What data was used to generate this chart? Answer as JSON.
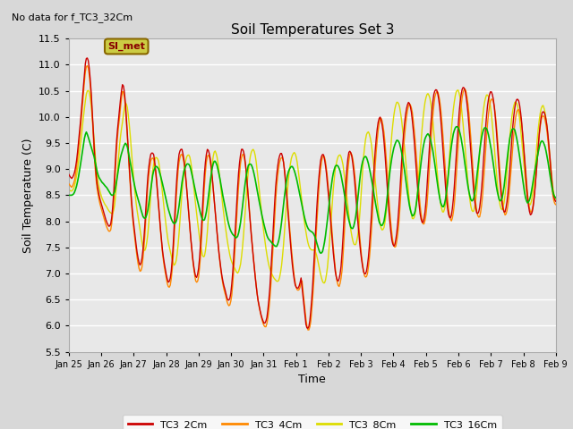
{
  "title": "Soil Temperatures Set 3",
  "subtitle": "No data for f_TC3_32Cm",
  "xlabel": "Time",
  "ylabel": "Soil Temperature (C)",
  "ylim": [
    5.5,
    11.5
  ],
  "yticks": [
    5.5,
    6.0,
    6.5,
    7.0,
    7.5,
    8.0,
    8.5,
    9.0,
    9.5,
    10.0,
    10.5,
    11.0,
    11.5
  ],
  "xtick_labels": [
    "Jan 25",
    "Jan 26",
    "Jan 27",
    "Jan 28",
    "Jan 29",
    "Jan 30",
    "Jan 31",
    "Feb 1",
    "Feb 2",
    "Feb 3",
    "Feb 4",
    "Feb 5",
    "Feb 6",
    "Feb 7",
    "Feb 8",
    "Feb 9"
  ],
  "legend_labels": [
    "TC3_2Cm",
    "TC3_4Cm",
    "TC3_8Cm",
    "TC3_16Cm"
  ],
  "line_colors": [
    "#cc0000",
    "#ff8800",
    "#dddd00",
    "#00bb00"
  ],
  "bg_color": "#d8d8d8",
  "plot_bg_color": "#e8e8e8",
  "grid_color": "#ffffff",
  "annotation_text": "SI_met",
  "annotation_bg": "#cccc44",
  "annotation_border": "#886600",
  "TC3_2Cm": [
    8.9,
    8.85,
    8.82,
    8.86,
    8.95,
    9.1,
    9.35,
    9.65,
    9.95,
    10.3,
    10.65,
    11.0,
    11.15,
    11.1,
    10.88,
    10.5,
    10.0,
    9.45,
    9.0,
    8.72,
    8.55,
    8.42,
    8.32,
    8.22,
    8.12,
    8.02,
    7.95,
    7.9,
    7.92,
    8.1,
    8.45,
    9.0,
    9.5,
    9.85,
    10.1,
    10.42,
    10.62,
    10.58,
    10.28,
    9.85,
    9.35,
    8.88,
    8.45,
    8.1,
    7.85,
    7.6,
    7.38,
    7.22,
    7.15,
    7.25,
    7.5,
    7.88,
    8.38,
    8.82,
    9.12,
    9.28,
    9.32,
    9.28,
    9.08,
    8.78,
    8.42,
    8.05,
    7.72,
    7.42,
    7.22,
    7.05,
    6.9,
    6.82,
    6.88,
    7.08,
    7.48,
    8.02,
    8.58,
    9.02,
    9.28,
    9.38,
    9.38,
    9.25,
    9.02,
    8.7,
    8.35,
    7.98,
    7.65,
    7.35,
    7.12,
    6.95,
    6.92,
    7.05,
    7.35,
    7.82,
    8.38,
    8.88,
    9.22,
    9.38,
    9.35,
    9.2,
    8.95,
    8.62,
    8.28,
    7.95,
    7.65,
    7.35,
    7.12,
    6.92,
    6.78,
    6.68,
    6.55,
    6.48,
    6.5,
    6.65,
    6.98,
    7.42,
    7.95,
    8.48,
    8.92,
    9.22,
    9.38,
    9.38,
    9.25,
    9.0,
    8.65,
    8.28,
    7.92,
    7.58,
    7.28,
    6.98,
    6.72,
    6.5,
    6.35,
    6.22,
    6.12,
    6.05,
    6.05,
    6.15,
    6.38,
    6.72,
    7.18,
    7.72,
    8.25,
    8.7,
    9.0,
    9.2,
    9.3,
    9.3,
    9.18,
    8.92,
    8.6,
    8.25,
    7.88,
    7.52,
    7.2,
    6.95,
    6.78,
    6.72,
    6.72,
    6.78,
    6.92,
    6.62,
    6.35,
    6.05,
    5.95,
    5.95,
    6.12,
    6.45,
    6.88,
    7.42,
    7.98,
    8.48,
    8.88,
    9.15,
    9.28,
    9.28,
    9.15,
    8.92,
    8.62,
    8.28,
    7.92,
    7.58,
    7.28,
    7.02,
    6.88,
    6.85,
    6.95,
    7.18,
    7.62,
    8.18,
    8.72,
    9.12,
    9.32,
    9.35,
    9.25,
    9.05,
    8.75,
    8.38,
    8.02,
    7.68,
    7.4,
    7.18,
    7.02,
    6.98,
    7.05,
    7.25,
    7.58,
    8.02,
    8.55,
    9.05,
    9.45,
    9.75,
    9.95,
    10.0,
    9.92,
    9.72,
    9.42,
    9.02,
    8.58,
    8.18,
    7.85,
    7.62,
    7.52,
    7.55,
    7.72,
    8.0,
    8.42,
    8.92,
    9.38,
    9.75,
    10.02,
    10.2,
    10.28,
    10.25,
    10.1,
    9.85,
    9.52,
    9.12,
    8.72,
    8.38,
    8.12,
    7.98,
    7.98,
    8.12,
    8.42,
    8.88,
    9.38,
    9.82,
    10.18,
    10.42,
    10.52,
    10.52,
    10.42,
    10.2,
    9.88,
    9.48,
    9.05,
    8.65,
    8.32,
    8.12,
    8.05,
    8.12,
    8.35,
    8.72,
    9.18,
    9.65,
    10.05,
    10.35,
    10.52,
    10.58,
    10.52,
    10.35,
    10.08,
    9.72,
    9.28,
    8.88,
    8.52,
    8.28,
    8.15,
    8.15,
    8.28,
    8.55,
    8.95,
    9.42,
    9.85,
    10.18,
    10.38,
    10.48,
    10.48,
    10.35,
    10.12,
    9.78,
    9.38,
    8.95,
    8.58,
    8.32,
    8.18,
    8.18,
    8.32,
    8.58,
    8.95,
    9.38,
    9.78,
    10.08,
    10.28,
    10.35,
    10.32,
    10.18,
    9.92,
    9.58,
    9.18,
    8.78,
    8.45,
    8.22,
    8.12,
    8.15,
    8.32,
    8.6,
    8.98,
    9.38,
    9.72,
    9.98,
    10.1,
    10.1,
    10.02,
    9.85,
    9.58,
    9.25,
    8.88,
    8.58,
    8.42,
    8.38
  ],
  "TC3_4Cm": [
    8.72,
    8.68,
    8.65,
    8.7,
    8.8,
    8.98,
    9.22,
    9.52,
    9.82,
    10.18,
    10.52,
    10.85,
    11.0,
    10.95,
    10.75,
    10.38,
    9.88,
    9.32,
    8.88,
    8.62,
    8.45,
    8.32,
    8.22,
    8.12,
    8.02,
    7.92,
    7.85,
    7.8,
    7.82,
    8.0,
    8.35,
    8.88,
    9.38,
    9.75,
    9.98,
    10.3,
    10.5,
    10.45,
    10.15,
    9.72,
    9.22,
    8.75,
    8.32,
    7.98,
    7.72,
    7.48,
    7.25,
    7.1,
    7.02,
    7.12,
    7.38,
    7.75,
    8.25,
    8.72,
    9.0,
    9.18,
    9.22,
    9.18,
    8.98,
    8.68,
    8.32,
    7.95,
    7.62,
    7.32,
    7.12,
    6.95,
    6.8,
    6.72,
    6.78,
    6.98,
    7.38,
    7.92,
    8.48,
    8.92,
    9.18,
    9.28,
    9.28,
    9.15,
    8.92,
    8.6,
    8.25,
    7.88,
    7.55,
    7.25,
    7.02,
    6.85,
    6.82,
    6.95,
    7.25,
    7.72,
    8.28,
    8.78,
    9.12,
    9.28,
    9.25,
    9.1,
    8.85,
    8.52,
    8.18,
    7.85,
    7.55,
    7.25,
    7.02,
    6.82,
    6.68,
    6.58,
    6.45,
    6.38,
    6.4,
    6.55,
    6.88,
    7.32,
    7.85,
    8.38,
    8.82,
    9.12,
    9.28,
    9.28,
    9.15,
    8.9,
    8.55,
    8.18,
    7.82,
    7.48,
    7.18,
    6.9,
    6.62,
    6.42,
    6.28,
    6.15,
    6.05,
    5.98,
    5.98,
    6.08,
    6.32,
    6.65,
    7.12,
    7.65,
    8.18,
    8.62,
    8.92,
    9.12,
    9.22,
    9.22,
    9.1,
    8.85,
    8.52,
    8.18,
    7.82,
    7.48,
    7.18,
    6.92,
    6.75,
    6.68,
    6.68,
    6.75,
    6.9,
    6.6,
    6.35,
    6.05,
    5.92,
    5.92,
    6.08,
    6.42,
    6.85,
    7.38,
    7.95,
    8.45,
    8.85,
    9.12,
    9.25,
    9.25,
    9.12,
    8.88,
    8.58,
    8.25,
    7.88,
    7.52,
    7.2,
    6.95,
    6.78,
    6.75,
    6.85,
    7.08,
    7.52,
    8.08,
    8.62,
    9.05,
    9.28,
    9.32,
    9.22,
    9.02,
    8.72,
    8.35,
    7.98,
    7.62,
    7.32,
    7.1,
    6.95,
    6.92,
    7.0,
    7.22,
    7.55,
    8.0,
    8.52,
    9.02,
    9.42,
    9.72,
    9.92,
    9.98,
    9.9,
    9.7,
    9.4,
    9.0,
    8.55,
    8.15,
    7.82,
    7.6,
    7.5,
    7.52,
    7.7,
    7.98,
    8.4,
    8.9,
    9.35,
    9.72,
    9.98,
    10.18,
    10.25,
    10.22,
    10.08,
    9.82,
    9.5,
    9.1,
    8.7,
    8.35,
    8.1,
    7.95,
    7.95,
    8.1,
    8.38,
    8.85,
    9.35,
    9.78,
    10.12,
    10.38,
    10.48,
    10.48,
    10.38,
    10.15,
    9.82,
    9.42,
    9.0,
    8.6,
    8.28,
    8.08,
    8.0,
    8.08,
    8.3,
    8.68,
    9.15,
    9.62,
    10.02,
    10.32,
    10.48,
    10.55,
    10.48,
    10.3,
    10.02,
    9.65,
    9.22,
    8.82,
    8.45,
    8.2,
    8.08,
    8.08,
    8.22,
    8.5,
    8.9,
    9.35,
    9.78,
    10.08,
    10.28,
    10.35,
    10.32,
    10.18,
    9.92,
    9.58,
    9.18,
    8.78,
    8.45,
    8.22,
    8.12,
    8.15,
    8.32,
    8.6,
    8.98,
    9.38,
    9.72,
    9.98,
    10.12,
    10.15,
    10.08,
    9.9,
    9.62,
    9.28,
    8.9,
    8.55,
    8.3,
    8.18,
    8.18,
    8.35,
    8.62,
    8.98,
    9.35,
    9.68,
    9.92,
    10.02,
    10.02,
    9.92,
    9.75,
    9.48,
    9.15,
    8.78,
    8.5,
    8.35,
    8.32
  ],
  "TC3_8Cm": [
    8.62,
    8.58,
    8.58,
    8.62,
    8.72,
    8.88,
    9.08,
    9.35,
    9.62,
    9.92,
    10.18,
    10.42,
    10.52,
    10.48,
    10.28,
    9.98,
    9.6,
    9.18,
    8.88,
    8.68,
    8.55,
    8.45,
    8.38,
    8.32,
    8.28,
    8.22,
    8.18,
    8.15,
    8.15,
    8.28,
    8.58,
    9.0,
    9.38,
    9.68,
    9.88,
    10.12,
    10.28,
    10.22,
    9.98,
    9.65,
    9.25,
    8.88,
    8.55,
    8.28,
    8.08,
    7.88,
    7.68,
    7.5,
    7.42,
    7.5,
    7.7,
    8.05,
    8.48,
    8.92,
    9.12,
    9.22,
    9.22,
    9.15,
    8.95,
    8.68,
    8.38,
    8.1,
    7.85,
    7.62,
    7.48,
    7.35,
    7.22,
    7.15,
    7.22,
    7.42,
    7.78,
    8.2,
    8.62,
    8.95,
    9.15,
    9.25,
    9.28,
    9.22,
    9.02,
    8.75,
    8.45,
    8.18,
    7.92,
    7.68,
    7.48,
    7.32,
    7.32,
    7.48,
    7.82,
    8.28,
    8.75,
    9.1,
    9.32,
    9.35,
    9.25,
    9.05,
    8.78,
    8.5,
    8.22,
    7.98,
    7.75,
    7.55,
    7.38,
    7.25,
    7.18,
    7.12,
    7.05,
    7.0,
    7.05,
    7.18,
    7.42,
    7.78,
    8.22,
    8.65,
    8.98,
    9.22,
    9.35,
    9.38,
    9.32,
    9.12,
    8.85,
    8.55,
    8.25,
    7.98,
    7.72,
    7.5,
    7.3,
    7.15,
    7.05,
    6.98,
    6.92,
    6.88,
    6.85,
    6.85,
    6.95,
    7.15,
    7.45,
    7.85,
    8.28,
    8.68,
    8.98,
    9.18,
    9.28,
    9.32,
    9.28,
    9.12,
    8.88,
    8.62,
    8.35,
    8.1,
    7.88,
    7.7,
    7.55,
    7.48,
    7.45,
    7.45,
    7.45,
    7.38,
    7.25,
    7.1,
    6.95,
    6.85,
    6.8,
    6.88,
    7.08,
    7.42,
    7.85,
    8.28,
    8.68,
    8.98,
    9.15,
    9.25,
    9.28,
    9.22,
    9.08,
    8.85,
    8.58,
    8.3,
    8.05,
    7.82,
    7.65,
    7.55,
    7.55,
    7.65,
    7.88,
    8.28,
    8.78,
    9.22,
    9.52,
    9.68,
    9.72,
    9.65,
    9.48,
    9.22,
    8.92,
    8.6,
    8.3,
    8.05,
    7.88,
    7.82,
    7.88,
    8.05,
    8.38,
    8.82,
    9.28,
    9.68,
    9.98,
    10.18,
    10.28,
    10.28,
    10.18,
    9.98,
    9.72,
    9.42,
    9.08,
    8.72,
    8.42,
    8.18,
    8.05,
    8.05,
    8.18,
    8.45,
    8.85,
    9.32,
    9.72,
    10.05,
    10.28,
    10.42,
    10.45,
    10.38,
    10.2,
    9.92,
    9.58,
    9.22,
    8.85,
    8.55,
    8.32,
    8.18,
    8.18,
    8.32,
    8.62,
    9.02,
    9.45,
    9.85,
    10.15,
    10.38,
    10.5,
    10.52,
    10.42,
    10.22,
    9.92,
    9.58,
    9.2,
    8.82,
    8.52,
    8.3,
    8.18,
    8.2,
    8.35,
    8.62,
    9.02,
    9.42,
    9.82,
    10.12,
    10.32,
    10.42,
    10.42,
    10.3,
    10.1,
    9.78,
    9.42,
    9.05,
    8.68,
    8.42,
    8.25,
    8.22,
    8.32,
    8.55,
    8.92,
    9.32,
    9.68,
    9.98,
    10.18,
    10.28,
    10.28,
    10.18,
    9.98,
    9.68,
    9.35,
    9.0,
    8.68,
    8.45,
    8.32,
    8.32,
    8.45,
    8.72,
    9.08,
    9.48,
    9.82,
    10.05,
    10.2,
    10.22,
    10.12,
    9.92,
    9.65,
    9.32,
    8.98,
    8.68,
    8.48,
    8.42
  ],
  "TC3_16Cm": [
    8.5,
    8.5,
    8.5,
    8.52,
    8.58,
    8.68,
    8.82,
    9.0,
    9.2,
    9.42,
    9.6,
    9.72,
    9.65,
    9.55,
    9.45,
    9.35,
    9.25,
    9.1,
    8.95,
    8.85,
    8.8,
    8.75,
    8.72,
    8.68,
    8.65,
    8.6,
    8.55,
    8.5,
    8.5,
    8.55,
    8.7,
    8.9,
    9.1,
    9.25,
    9.35,
    9.45,
    9.5,
    9.45,
    9.3,
    9.12,
    8.95,
    8.8,
    8.65,
    8.52,
    8.42,
    8.32,
    8.2,
    8.1,
    8.05,
    8.08,
    8.18,
    8.38,
    8.62,
    8.85,
    8.98,
    9.05,
    9.05,
    9.0,
    8.9,
    8.78,
    8.65,
    8.52,
    8.38,
    8.25,
    8.15,
    8.05,
    7.98,
    7.95,
    7.98,
    8.1,
    8.3,
    8.55,
    8.78,
    8.95,
    9.05,
    9.1,
    9.1,
    9.05,
    8.92,
    8.78,
    8.62,
    8.48,
    8.35,
    8.22,
    8.1,
    8.02,
    8.02,
    8.12,
    8.32,
    8.58,
    8.82,
    9.02,
    9.15,
    9.15,
    9.08,
    8.95,
    8.8,
    8.62,
    8.45,
    8.3,
    8.15,
    8.0,
    7.88,
    7.8,
    7.75,
    7.72,
    7.68,
    7.7,
    7.8,
    7.98,
    8.22,
    8.5,
    8.75,
    8.95,
    9.08,
    9.1,
    9.08,
    8.98,
    8.85,
    8.68,
    8.52,
    8.35,
    8.2,
    8.05,
    7.92,
    7.8,
    7.7,
    7.65,
    7.62,
    7.58,
    7.55,
    7.52,
    7.52,
    7.6,
    7.75,
    7.98,
    8.25,
    8.52,
    8.75,
    8.92,
    9.0,
    9.05,
    9.05,
    8.98,
    8.88,
    8.75,
    8.6,
    8.45,
    8.3,
    8.15,
    8.02,
    7.92,
    7.85,
    7.82,
    7.8,
    7.78,
    7.72,
    7.62,
    7.52,
    7.42,
    7.38,
    7.42,
    7.55,
    7.75,
    8.0,
    8.28,
    8.55,
    8.78,
    8.95,
    9.05,
    9.08,
    9.05,
    8.98,
    8.85,
    8.68,
    8.5,
    8.3,
    8.12,
    7.98,
    7.88,
    7.85,
    7.92,
    8.08,
    8.32,
    8.62,
    8.9,
    9.1,
    9.2,
    9.25,
    9.22,
    9.12,
    8.98,
    8.82,
    8.65,
    8.45,
    8.28,
    8.12,
    7.98,
    7.92,
    7.92,
    8.0,
    8.18,
    8.45,
    8.75,
    9.02,
    9.22,
    9.38,
    9.48,
    9.55,
    9.55,
    9.48,
    9.35,
    9.18,
    8.98,
    8.75,
    8.52,
    8.32,
    8.18,
    8.1,
    8.12,
    8.22,
    8.45,
    8.72,
    9.0,
    9.25,
    9.45,
    9.58,
    9.65,
    9.68,
    9.62,
    9.5,
    9.35,
    9.15,
    8.92,
    8.7,
    8.5,
    8.35,
    8.28,
    8.28,
    8.42,
    8.65,
    8.95,
    9.25,
    9.5,
    9.68,
    9.78,
    9.82,
    9.8,
    9.72,
    9.58,
    9.4,
    9.18,
    8.95,
    8.72,
    8.55,
    8.42,
    8.38,
    8.45,
    8.62,
    8.88,
    9.15,
    9.42,
    9.62,
    9.75,
    9.8,
    9.78,
    9.7,
    9.55,
    9.38,
    9.18,
    8.95,
    8.72,
    8.55,
    8.42,
    8.38,
    8.45,
    8.62,
    8.88,
    9.15,
    9.42,
    9.62,
    9.75,
    9.78,
    9.75,
    9.62,
    9.45,
    9.25,
    9.02,
    8.8,
    8.58,
    8.42,
    8.35,
    8.38,
    8.48,
    8.65,
    8.85,
    9.02,
    9.18,
    9.35,
    9.48,
    9.55,
    9.52,
    9.45,
    9.32,
    9.15,
    8.95,
    8.75,
    8.58,
    8.48,
    8.45
  ]
}
